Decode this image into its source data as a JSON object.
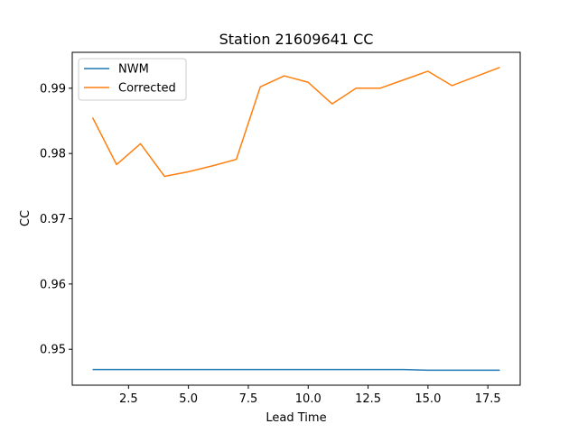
{
  "chart_data": {
    "type": "line",
    "title": "Station 21609641 CC",
    "xlabel": "Lead Time",
    "ylabel": "CC",
    "xlim": [
      0.15,
      18.85
    ],
    "ylim": [
      0.9445,
      0.9955
    ],
    "xticks": [
      2.5,
      5.0,
      7.5,
      10.0,
      12.5,
      15.0,
      17.5
    ],
    "xtick_labels": [
      "2.5",
      "5.0",
      "7.5",
      "10.0",
      "12.5",
      "15.0",
      "17.5"
    ],
    "yticks": [
      0.95,
      0.96,
      0.97,
      0.98,
      0.99
    ],
    "ytick_labels": [
      "0.95",
      "0.96",
      "0.97",
      "0.98",
      "0.99"
    ],
    "grid": false,
    "legend_position": "upper-left",
    "x": [
      1,
      2,
      3,
      4,
      5,
      6,
      7,
      8,
      9,
      10,
      11,
      12,
      13,
      14,
      15,
      16,
      17,
      18
    ],
    "series": [
      {
        "name": "NWM",
        "color": "#1f77b4",
        "values": [
          0.9469,
          0.9469,
          0.9469,
          0.9469,
          0.9469,
          0.9469,
          0.9469,
          0.9469,
          0.9469,
          0.9469,
          0.9469,
          0.9469,
          0.9469,
          0.9469,
          0.9468,
          0.9468,
          0.9468,
          0.9468
        ]
      },
      {
        "name": "Corrected",
        "color": "#ff7f0e",
        "values": [
          0.9855,
          0.9783,
          0.9815,
          0.9765,
          0.9772,
          0.9781,
          0.9791,
          0.9902,
          0.9919,
          0.9909,
          0.9876,
          0.99,
          0.99,
          0.9913,
          0.9926,
          0.9904,
          0.9918,
          0.9932
        ]
      }
    ]
  }
}
